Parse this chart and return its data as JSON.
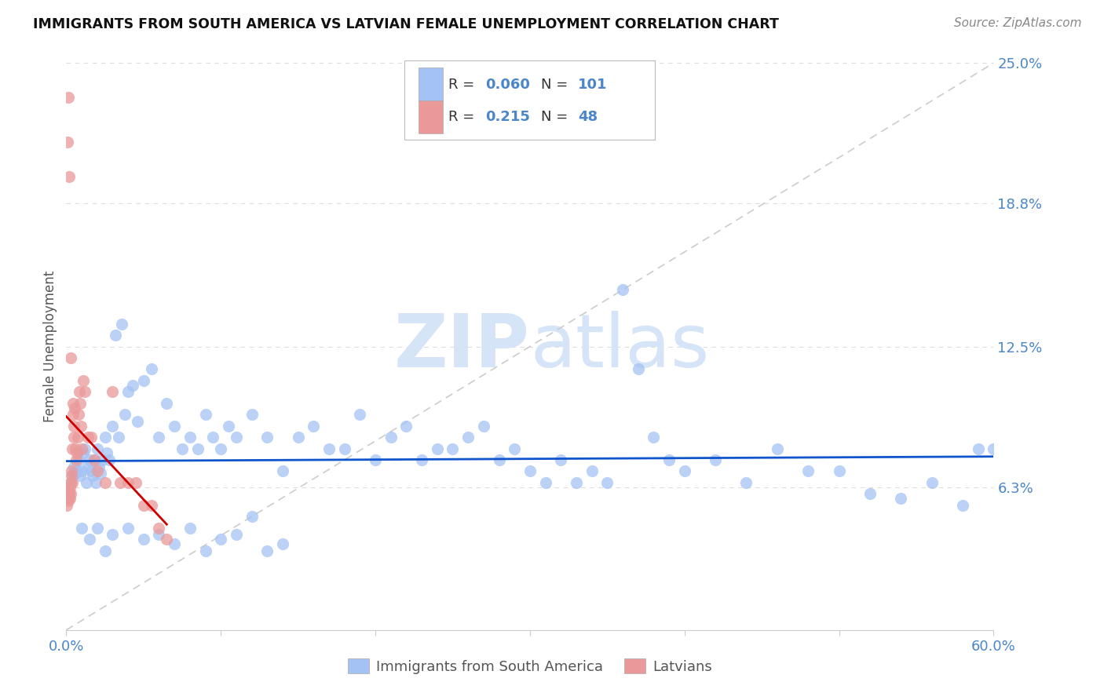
{
  "title": "IMMIGRANTS FROM SOUTH AMERICA VS LATVIAN FEMALE UNEMPLOYMENT CORRELATION CHART",
  "source": "Source: ZipAtlas.com",
  "ylabel": "Female Unemployment",
  "xmin": 0.0,
  "xmax": 60.0,
  "ymin": 0.0,
  "ymax": 25.0,
  "blue_color": "#a4c2f4",
  "pink_color": "#ea9999",
  "blue_line_color": "#1155cc",
  "pink_line_color": "#cc0000",
  "axis_color": "#4a86c8",
  "grid_color": "#dddddd",
  "watermark_color": "#d6e4f7",
  "yticks": [
    0.0,
    6.3,
    12.5,
    18.8,
    25.0
  ],
  "ytick_labels": [
    "",
    "6.3%",
    "12.5%",
    "18.8%",
    "25.0%"
  ],
  "blue_R": "0.060",
  "blue_N": "101",
  "pink_R": "0.215",
  "pink_N": "48",
  "blue_x": [
    0.3,
    0.4,
    0.5,
    0.6,
    0.7,
    0.8,
    0.9,
    1.0,
    1.1,
    1.2,
    1.3,
    1.4,
    1.5,
    1.6,
    1.7,
    1.8,
    1.9,
    2.0,
    2.1,
    2.2,
    2.3,
    2.5,
    2.6,
    2.8,
    3.0,
    3.2,
    3.4,
    3.6,
    3.8,
    4.0,
    4.3,
    4.6,
    5.0,
    5.5,
    6.0,
    6.5,
    7.0,
    7.5,
    8.0,
    8.5,
    9.0,
    9.5,
    10.0,
    10.5,
    11.0,
    12.0,
    13.0,
    14.0,
    15.0,
    16.0,
    17.0,
    18.0,
    19.0,
    20.0,
    21.0,
    22.0,
    23.0,
    24.0,
    25.0,
    26.0,
    27.0,
    28.0,
    29.0,
    30.0,
    31.0,
    32.0,
    33.0,
    34.0,
    35.0,
    36.0,
    37.0,
    38.0,
    39.0,
    40.0,
    42.0,
    44.0,
    46.0,
    48.0,
    50.0,
    52.0,
    54.0,
    56.0,
    58.0,
    59.0,
    60.0,
    1.0,
    1.5,
    2.0,
    2.5,
    3.0,
    4.0,
    5.0,
    6.0,
    7.0,
    8.0,
    9.0,
    10.0,
    11.0,
    12.0,
    13.0,
    14.0
  ],
  "blue_y": [
    6.5,
    6.8,
    7.2,
    6.9,
    7.0,
    7.5,
    6.8,
    7.0,
    7.8,
    8.0,
    6.5,
    7.2,
    7.5,
    7.0,
    6.8,
    7.5,
    6.5,
    8.0,
    7.2,
    6.9,
    7.5,
    8.5,
    7.8,
    7.5,
    9.0,
    13.0,
    8.5,
    13.5,
    9.5,
    10.5,
    10.8,
    9.2,
    11.0,
    11.5,
    8.5,
    10.0,
    9.0,
    8.0,
    8.5,
    8.0,
    9.5,
    8.5,
    8.0,
    9.0,
    8.5,
    9.5,
    8.5,
    7.0,
    8.5,
    9.0,
    8.0,
    8.0,
    9.5,
    7.5,
    8.5,
    9.0,
    7.5,
    8.0,
    8.0,
    8.5,
    9.0,
    7.5,
    8.0,
    7.0,
    6.5,
    7.5,
    6.5,
    7.0,
    6.5,
    15.0,
    11.5,
    8.5,
    7.5,
    7.0,
    7.5,
    6.5,
    8.0,
    7.0,
    7.0,
    6.0,
    5.8,
    6.5,
    5.5,
    8.0,
    8.0,
    4.5,
    4.0,
    4.5,
    3.5,
    4.2,
    4.5,
    4.0,
    4.2,
    3.8,
    4.5,
    3.5,
    4.0,
    4.2,
    5.0,
    3.5,
    3.8
  ],
  "pink_x": [
    0.05,
    0.08,
    0.1,
    0.12,
    0.15,
    0.18,
    0.2,
    0.22,
    0.25,
    0.28,
    0.3,
    0.32,
    0.35,
    0.38,
    0.4,
    0.42,
    0.45,
    0.48,
    0.5,
    0.55,
    0.6,
    0.65,
    0.7,
    0.75,
    0.8,
    0.85,
    0.9,
    0.95,
    1.0,
    1.1,
    1.2,
    1.4,
    1.6,
    1.8,
    2.0,
    2.5,
    3.0,
    3.5,
    4.0,
    4.5,
    5.0,
    5.5,
    6.0,
    6.5,
    0.1,
    0.15,
    0.2,
    0.3
  ],
  "pink_y": [
    5.5,
    5.8,
    6.0,
    6.2,
    5.7,
    5.9,
    6.1,
    6.3,
    5.8,
    6.0,
    6.5,
    6.8,
    7.0,
    6.5,
    8.0,
    9.5,
    10.0,
    9.0,
    8.5,
    9.8,
    8.0,
    7.5,
    7.8,
    8.5,
    9.5,
    10.5,
    10.0,
    9.0,
    8.0,
    11.0,
    10.5,
    8.5,
    8.5,
    7.5,
    7.0,
    6.5,
    10.5,
    6.5,
    6.5,
    6.5,
    5.5,
    5.5,
    4.5,
    4.0,
    21.5,
    23.5,
    20.0,
    12.0
  ]
}
